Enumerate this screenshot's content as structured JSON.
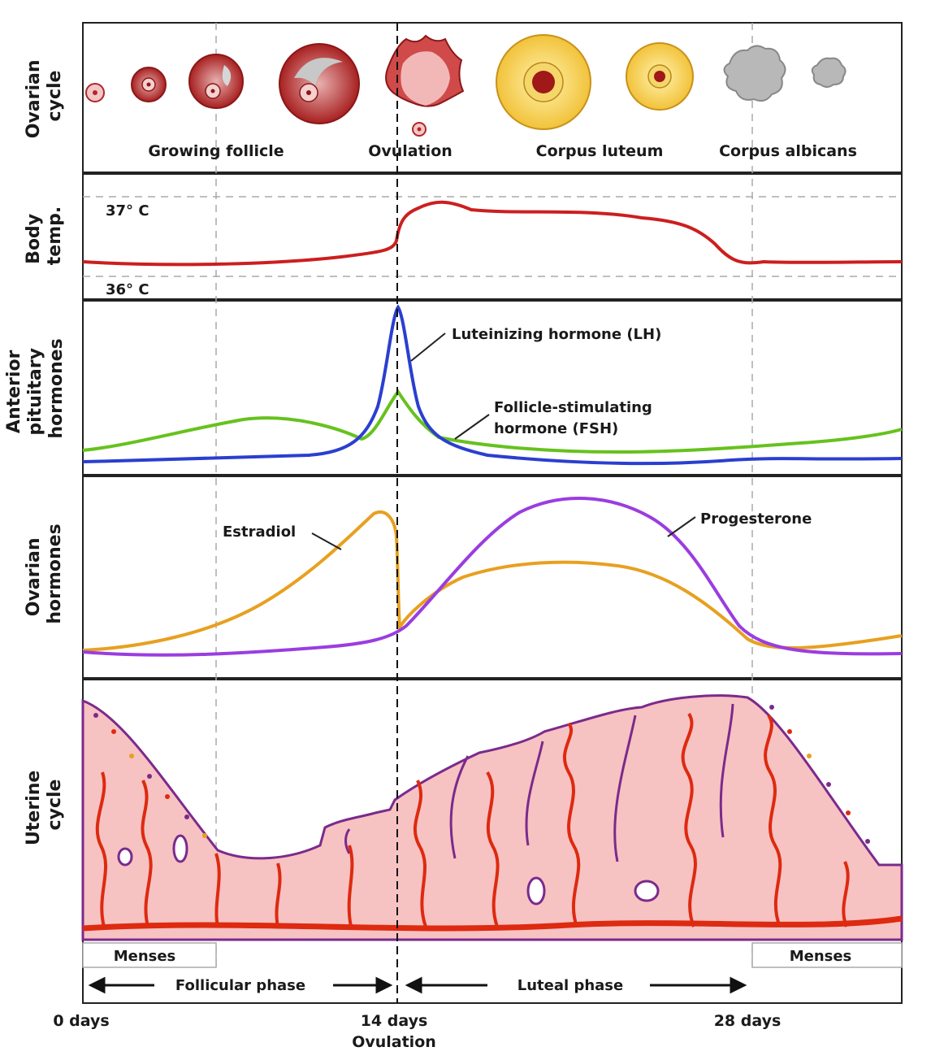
{
  "panels": {
    "ovarian_cycle": {
      "side_label": [
        "Ovarian",
        "cycle"
      ],
      "stage_labels": [
        "Growing follicle",
        "Ovulation",
        "Corpus luteum",
        "Corpus albicans"
      ]
    },
    "body_temp": {
      "side_label": [
        "Body",
        "temp."
      ],
      "upper_ref": "37° C",
      "lower_ref": "36° C"
    },
    "anterior_pituitary": {
      "side_label": [
        "Anterior",
        "pituitary",
        "hormones"
      ],
      "lh_label": "Luteinizing hormone (LH)",
      "fsh_label": [
        "Follicle-stimulating",
        "hormone (FSH)"
      ]
    },
    "ovarian_hormones": {
      "side_label": [
        "Ovarian",
        "hormones"
      ],
      "estradiol_label": "Estradiol",
      "progesterone_label": "Progesterone"
    },
    "uterine_cycle": {
      "side_label": [
        "Uterine",
        "cycle"
      ],
      "menses_left": "Menses",
      "menses_right": "Menses"
    }
  },
  "phases": {
    "follicular": "Follicular phase",
    "luteal": "Luteal phase"
  },
  "timeline": {
    "start": "0 days",
    "mid": "14 days",
    "mid_sub": "Ovulation",
    "end": "28 days"
  },
  "colors": {
    "temperature": "#cc1f1f",
    "lh": "#2a3fd0",
    "fsh": "#66c21e",
    "estradiol": "#e8a020",
    "progesterone": "#9a3de0",
    "endometrium": "#f7c2c2",
    "endometrium_edge": "#7b2a8c",
    "vessel": "#dd2a10"
  }
}
